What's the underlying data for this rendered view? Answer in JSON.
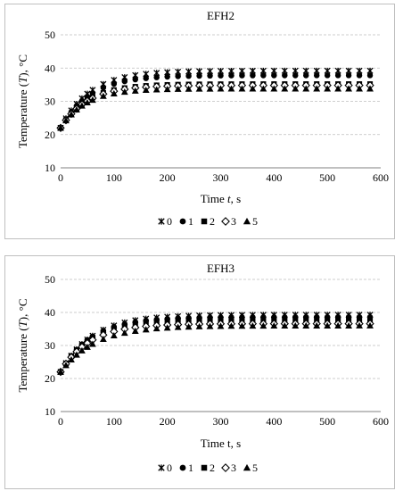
{
  "chart_data": [
    {
      "type": "scatter",
      "title": "EFH2",
      "xlabel_parts": [
        "Time ",
        "t",
        ", s"
      ],
      "ylabel_parts": [
        "Temperature (",
        "T",
        "), °C"
      ],
      "xlim": [
        0,
        600
      ],
      "ylim": [
        10,
        50
      ],
      "x_ticks": [
        "0",
        "100",
        "200",
        "300",
        "400",
        "500",
        "600"
      ],
      "y_ticks": [
        "10",
        "20",
        "30",
        "40",
        "50"
      ],
      "grid": "horizontal-dashed",
      "legend_position": "bottom",
      "series": [
        {
          "name": "0",
          "marker": "asterisk",
          "start": 22,
          "final": 39.2,
          "tau": 55
        },
        {
          "name": "1",
          "marker": "circle",
          "start": 22,
          "final": 37.8,
          "tau": 55
        },
        {
          "name": "2",
          "marker": "square",
          "start": 22,
          "final": 35.2,
          "tau": 50
        },
        {
          "name": "3",
          "marker": "diamond",
          "start": 22,
          "final": 34.8,
          "tau": 50
        },
        {
          "name": "5",
          "marker": "triangle",
          "start": 22,
          "final": 33.8,
          "tau": 48
        }
      ]
    },
    {
      "type": "scatter",
      "title": "EFH3",
      "xlabel_parts": [
        "Time t, s",
        "",
        ""
      ],
      "ylabel_parts": [
        "Temperature (",
        "T",
        "), °C"
      ],
      "xlim": [
        0,
        600
      ],
      "ylim": [
        10,
        50
      ],
      "x_ticks": [
        "0",
        "100",
        "200",
        "300",
        "400",
        "500",
        "600"
      ],
      "y_ticks": [
        "10",
        "20",
        "30",
        "40",
        "50"
      ],
      "grid": "horizontal-dashed",
      "legend_position": "bottom",
      "series": [
        {
          "name": "0",
          "marker": "asterisk",
          "start": 22,
          "final": 39.3,
          "tau": 60
        },
        {
          "name": "1",
          "marker": "circle",
          "start": 22,
          "final": 38.6,
          "tau": 58
        },
        {
          "name": "2",
          "marker": "square",
          "start": 22,
          "final": 37.8,
          "tau": 56
        },
        {
          "name": "3",
          "marker": "diamond",
          "start": 22,
          "final": 36.6,
          "tau": 55
        },
        {
          "name": "5",
          "marker": "triangle",
          "start": 22,
          "final": 36.0,
          "tau": 65
        }
      ]
    }
  ]
}
